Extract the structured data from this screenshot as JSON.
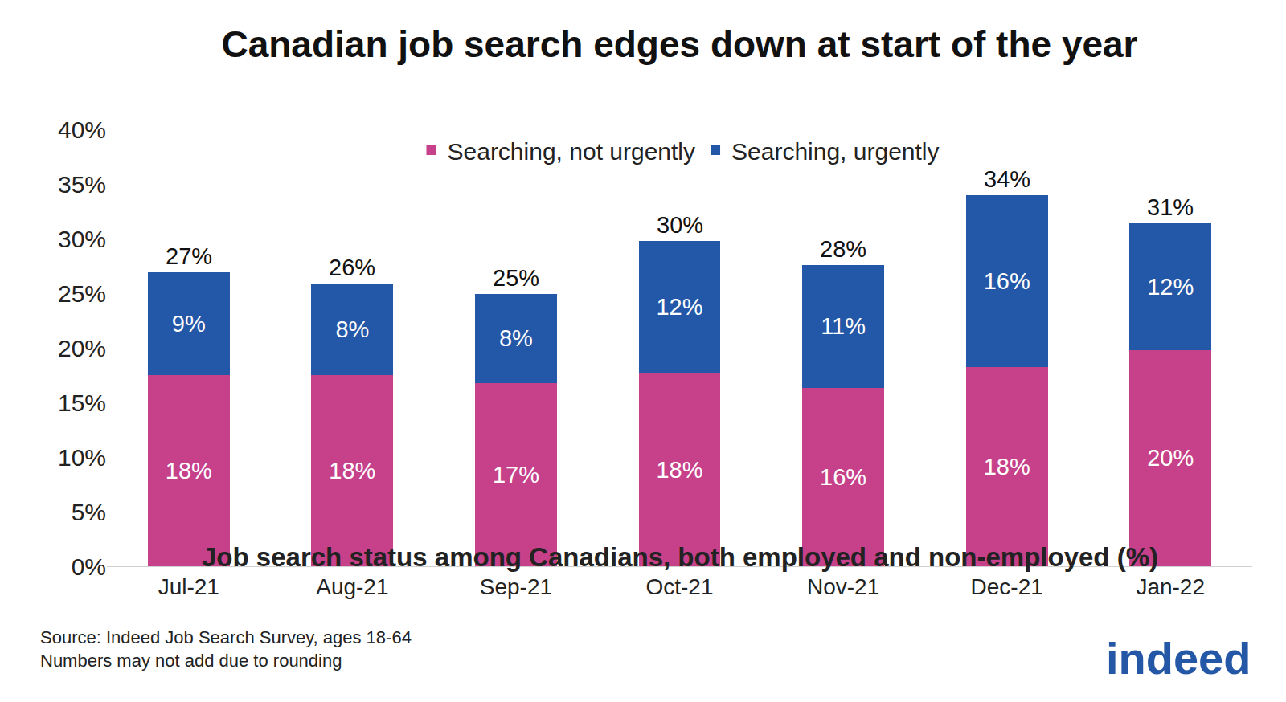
{
  "chart_data": {
    "type": "bar",
    "title": "Canadian job search edges down at start of the year",
    "subtitle": "Job search status among Canadians, both employed and non-employed (%)",
    "categories": [
      "Jul-21",
      "Aug-21",
      "Sep-21",
      "Oct-21",
      "Nov-21",
      "Dec-21",
      "Jan-22"
    ],
    "series": [
      {
        "name": "Searching, not urgently",
        "color": "#c6408a",
        "values": [
          17.5,
          17.5,
          16.8,
          17.7,
          16.3,
          18.2,
          19.8
        ],
        "value_labels": [
          "18%",
          "18%",
          "17%",
          "18%",
          "16%",
          "18%",
          "20%"
        ]
      },
      {
        "name": "Searching, urgently",
        "color": "#2358a8",
        "values": [
          9.4,
          8.4,
          8.1,
          12.1,
          11.3,
          15.8,
          11.6
        ],
        "value_labels": [
          "9%",
          "8%",
          "8%",
          "12%",
          "11%",
          "16%",
          "12%"
        ]
      }
    ],
    "totals": {
      "values": [
        26.9,
        25.9,
        24.9,
        29.8,
        27.6,
        34.0,
        31.4
      ],
      "value_labels": [
        "27%",
        "26%",
        "25%",
        "30%",
        "28%",
        "34%",
        "31%"
      ]
    },
    "ylim": [
      0,
      40
    ],
    "yticks": [
      {
        "value": 0,
        "label": "0%"
      },
      {
        "value": 5,
        "label": "5%"
      },
      {
        "value": 10,
        "label": "10%"
      },
      {
        "value": 15,
        "label": "15%"
      },
      {
        "value": 20,
        "label": "20%"
      },
      {
        "value": 25,
        "label": "25%"
      },
      {
        "value": 30,
        "label": "30%"
      },
      {
        "value": 35,
        "label": "35%"
      },
      {
        "value": 40,
        "label": "40%"
      }
    ],
    "stacked": true,
    "data_labels": true,
    "grid": false,
    "legend": "top",
    "notes": [
      "Source: Indeed Job Search Survey, ages 18-64",
      "Numbers may not add due to rounding"
    ],
    "logo": "indeed"
  }
}
